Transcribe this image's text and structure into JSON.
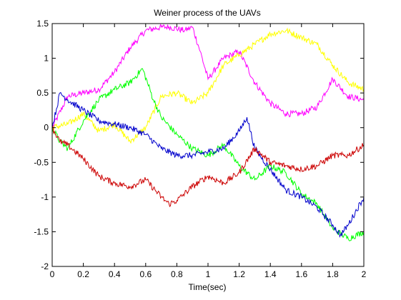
{
  "chart_data": {
    "type": "line",
    "title": "Weiner process of the UAVs",
    "xlabel": "Time(sec)",
    "ylabel": "",
    "xlim": [
      0,
      2
    ],
    "ylim": [
      -2,
      1.5
    ],
    "grid": false,
    "x_ticks": [
      "0",
      "0.2",
      "0.4",
      "0.6",
      "0.8",
      "1",
      "1.2",
      "1.4",
      "1.6",
      "1.8",
      "2"
    ],
    "y_ticks": [
      "-2",
      "-1.5",
      "-1",
      "-0.5",
      "0",
      "0.5",
      "1",
      "1.5"
    ],
    "series": [
      {
        "color": "#ff00ff",
        "x": [
          0,
          0.1,
          0.2,
          0.3,
          0.4,
          0.5,
          0.6,
          0.7,
          0.75,
          0.85,
          0.9,
          0.95,
          1.0,
          1.05,
          1.1,
          1.15,
          1.2,
          1.3,
          1.4,
          1.5,
          1.6,
          1.7,
          1.8,
          1.9,
          2.0
        ],
        "values": [
          0,
          0.45,
          0.5,
          0.55,
          0.8,
          1.15,
          1.4,
          1.45,
          1.45,
          1.4,
          1.45,
          1.1,
          0.7,
          0.85,
          1.0,
          1.05,
          1.1,
          0.65,
          0.35,
          0.2,
          0.2,
          0.3,
          0.7,
          0.45,
          0.4
        ]
      },
      {
        "color": "#ffff00",
        "x": [
          0,
          0.1,
          0.2,
          0.3,
          0.4,
          0.5,
          0.6,
          0.7,
          0.8,
          0.9,
          1.0,
          1.1,
          1.2,
          1.3,
          1.4,
          1.5,
          1.6,
          1.7,
          1.8,
          1.9,
          2.0
        ],
        "values": [
          0,
          0.05,
          0.2,
          -0.05,
          0.05,
          -0.2,
          0,
          0.45,
          0.5,
          0.35,
          0.5,
          0.9,
          1.05,
          1.2,
          1.35,
          1.4,
          1.3,
          1.2,
          0.9,
          0.65,
          0.55
        ]
      },
      {
        "color": "#00ff00",
        "x": [
          0,
          0.05,
          0.1,
          0.2,
          0.3,
          0.4,
          0.5,
          0.58,
          0.65,
          0.7,
          0.8,
          0.9,
          1.0,
          1.1,
          1.2,
          1.3,
          1.4,
          1.5,
          1.6,
          1.7,
          1.8,
          1.9,
          2.0
        ],
        "values": [
          0,
          -0.2,
          -0.3,
          0.1,
          0.4,
          0.55,
          0.65,
          0.85,
          0.4,
          0.15,
          -0.1,
          -0.3,
          -0.4,
          -0.25,
          -0.55,
          -0.75,
          -0.55,
          -0.65,
          -0.95,
          -1.1,
          -1.45,
          -1.6,
          -1.5
        ]
      },
      {
        "color": "#0000cc",
        "x": [
          0,
          0.05,
          0.1,
          0.2,
          0.3,
          0.4,
          0.5,
          0.6,
          0.7,
          0.8,
          0.9,
          1.0,
          1.1,
          1.2,
          1.25,
          1.3,
          1.4,
          1.5,
          1.6,
          1.7,
          1.8,
          1.85,
          1.9,
          2.0
        ],
        "values": [
          0,
          0.5,
          0.4,
          0.25,
          0.1,
          0.05,
          0,
          -0.1,
          -0.3,
          -0.4,
          -0.4,
          -0.35,
          -0.3,
          -0.05,
          0.15,
          -0.3,
          -0.6,
          -0.9,
          -1.0,
          -1.15,
          -1.4,
          -1.55,
          -1.4,
          -1.0
        ]
      },
      {
        "color": "#cc0000",
        "x": [
          0,
          0.05,
          0.1,
          0.2,
          0.3,
          0.4,
          0.5,
          0.6,
          0.7,
          0.75,
          0.8,
          0.9,
          1.0,
          1.1,
          1.2,
          1.3,
          1.4,
          1.5,
          1.6,
          1.7,
          1.8,
          1.9,
          2.0
        ],
        "values": [
          0,
          -0.2,
          -0.25,
          -0.45,
          -0.7,
          -0.8,
          -0.85,
          -0.75,
          -1.0,
          -1.1,
          -1.05,
          -0.85,
          -0.7,
          -0.8,
          -0.65,
          -0.3,
          -0.5,
          -0.55,
          -0.6,
          -0.55,
          -0.4,
          -0.4,
          -0.25
        ]
      }
    ]
  }
}
